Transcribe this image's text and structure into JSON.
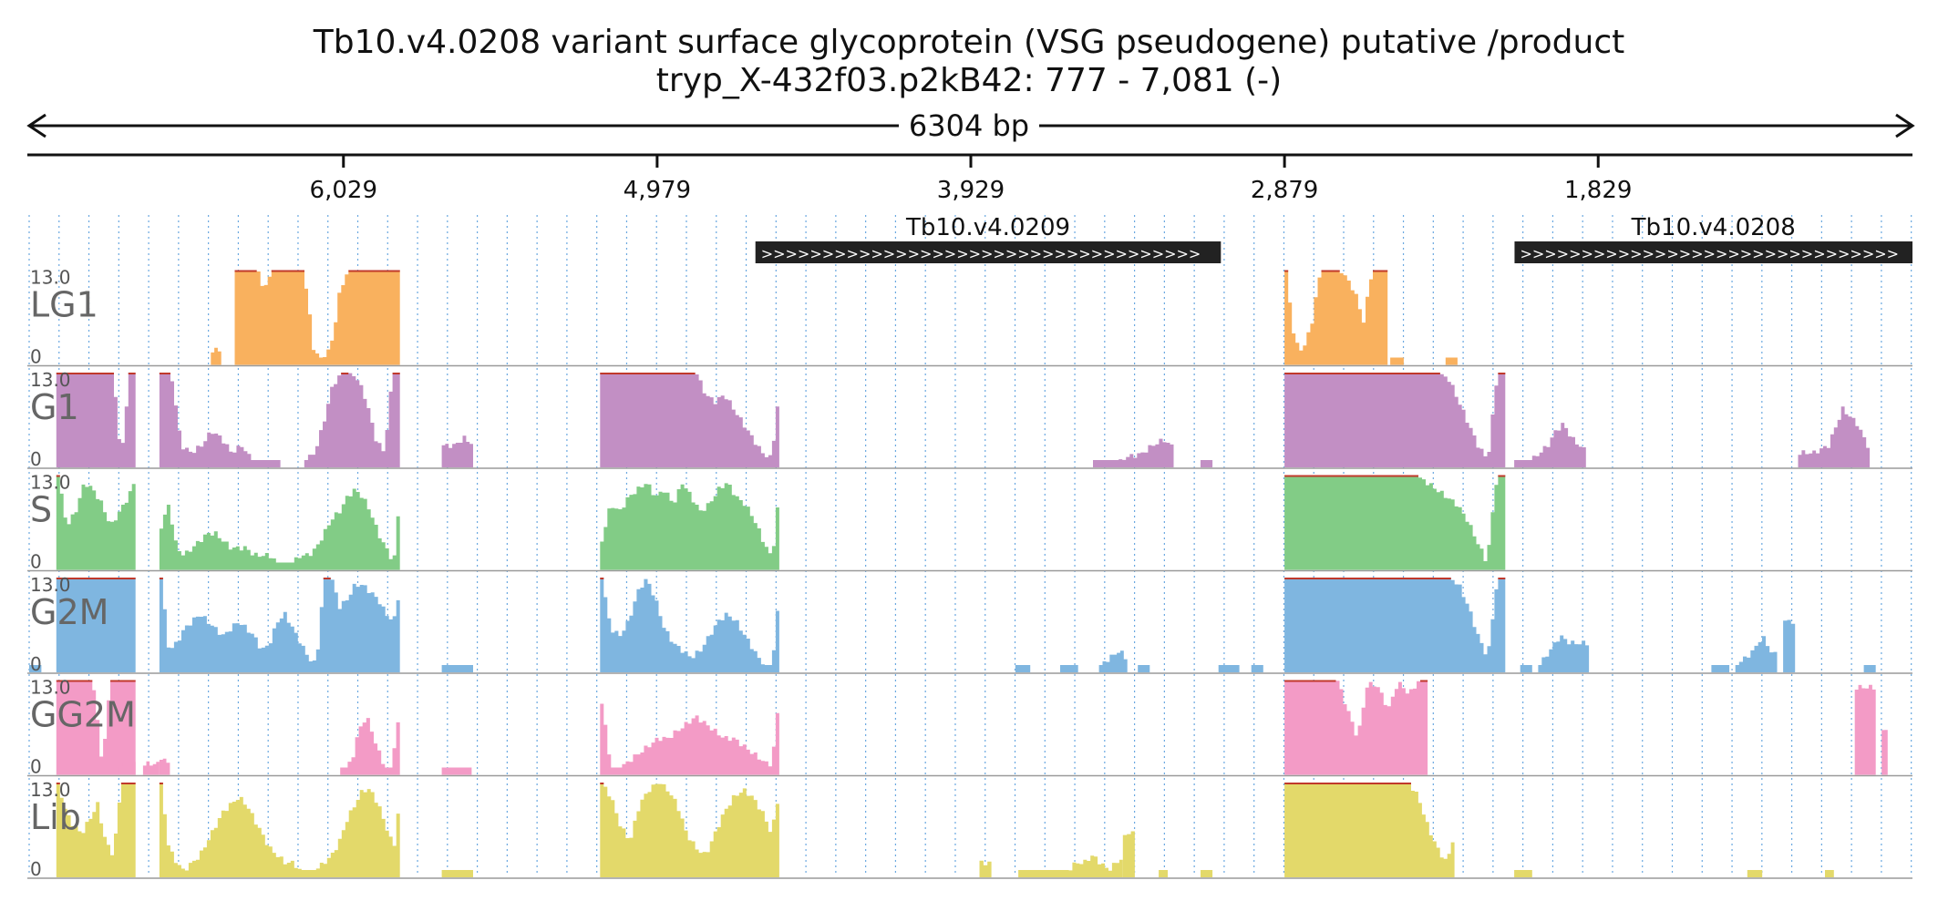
{
  "header": {
    "title": "Tb10.v4.0208  variant surface glycoprotein (VSG  pseudogene)  putative /product",
    "subtitle": "tryp_X-432f03.p2kB42: 777 - 7,081 (-)",
    "span_label": "6304 bp"
  },
  "colors": {
    "LG1": "#f9b15e",
    "G1": "#c28fc4",
    "S": "#82cc86",
    "G2M": "#7fb6e0",
    "GG2M": "#f39bc6",
    "Lib": "#e3d96a",
    "saturation": "#c0392b",
    "gene_fill": "#222222",
    "grid": "#6aa8e0"
  },
  "chart_data": {
    "type": "area",
    "title": "Tb10.v4.0208  variant surface glycoprotein (VSG  pseudogene)  putative /product",
    "region": {
      "start": 777,
      "end": 7081,
      "strand": "-"
    },
    "x_axis": {
      "ticks": [
        6029,
        4979,
        3929,
        2879,
        1829
      ],
      "tick_labels": [
        "6,029",
        "4,979",
        "3,929",
        "2,879",
        "1,829"
      ],
      "reversed": true
    },
    "y_axis": {
      "min": 0,
      "max": 13.0,
      "max_label": "13.0",
      "min_label": "0"
    },
    "genes": [
      {
        "name": "Tb10.v4.0209",
        "start": 3092,
        "end": 4650,
        "strand": "-"
      },
      {
        "name": "Tb10.v4.0208",
        "start": 777,
        "end": 2109,
        "strand": "-"
      }
    ],
    "tracks": [
      {
        "name": "LG1",
        "segments": [
          {
            "start": 6473,
            "end": 6438,
            "v": [
              2.0,
              2.0
            ]
          },
          {
            "start": 6393,
            "end": 5840,
            "v": [
              13,
              13,
              13,
              13,
              13,
              11,
              11,
              13,
              13,
              13,
              13,
              13,
              13,
              13,
              8,
              2,
              1,
              1,
              2,
              5,
              10,
              12,
              13,
              13,
              13,
              13,
              13,
              13,
              13,
              13,
              13,
              13,
              13
            ]
          },
          {
            "start": 2879,
            "end": 2534,
            "v": [
              13,
              3,
              2,
              6,
              13,
              13,
              13,
              12,
              10,
              6,
              13,
              13,
              13
            ]
          },
          {
            "start": 2525,
            "end": 2480,
            "v": [
              1.0,
              1.0
            ]
          },
          {
            "start": 2340,
            "end": 2300,
            "v": [
              1.0,
              1.0
            ]
          }
        ]
      },
      {
        "name": "G1",
        "segments": [
          {
            "start": 6990,
            "end": 6725,
            "v": [
              13,
              13,
              13,
              13,
              13,
              13,
              13,
              13,
              0.8,
              13,
              13
            ]
          },
          {
            "start": 6645,
            "end": 6240,
            "v": [
              13,
              13,
              3,
              2,
              3,
              5,
              4,
              2,
              3,
              1,
              1,
              1,
              1
            ]
          },
          {
            "start": 6160,
            "end": 5840,
            "v": [
              1,
              2,
              6,
              11,
              13,
              13,
              12,
              9,
              4,
              2,
              13,
              13
            ]
          },
          {
            "start": 5700,
            "end": 5595,
            "v": [
              3.0,
              3.0,
              4.0,
              3.0
            ]
          },
          {
            "start": 5170,
            "end": 4570,
            "v": [
              13,
              13,
              13,
              13,
              13,
              13,
              13,
              13,
              13,
              13,
              13,
              10,
              9,
              10,
              8,
              6,
              4,
              2,
              1.2,
              13
            ]
          },
          {
            "start": 3520,
            "end": 3250,
            "v": [
              1,
              1,
              1,
              1.5,
              1.8,
              3.0,
              3.8,
              2.5
            ]
          },
          {
            "start": 3160,
            "end": 3120,
            "v": [
              1.0,
              1.0
            ]
          },
          {
            "start": 2879,
            "end": 2140,
            "v": [
              13,
              13,
              13,
              13,
              13,
              13,
              13,
              13,
              13,
              13,
              13,
              13,
              13,
              13,
              13,
              13,
              13,
              12,
              9,
              6,
              3,
              1,
              13,
              13
            ]
          },
          {
            "start": 2110,
            "end": 1870,
            "v": [
              1,
              1,
              1,
              2,
              3,
              5,
              6,
              4,
              3,
              2
            ]
          },
          {
            "start": 1160,
            "end": 920,
            "v": [
              2.0,
              2.0,
              3.0,
              8.0,
              6.0,
              2.0
            ]
          }
        ]
      },
      {
        "name": "S",
        "segments": [
          {
            "start": 6990,
            "end": 6725,
            "v": [
              13,
              6,
              8,
              12,
              11,
              9,
              6,
              8,
              10,
              13
            ]
          },
          {
            "start": 6645,
            "end": 5840,
            "v": [
              6,
              9,
              3,
              2,
              3,
              4,
              5,
              5,
              4,
              3,
              3,
              3,
              2,
              2,
              2,
              1,
              1,
              1,
              2,
              2,
              3,
              5,
              7,
              8,
              10,
              11,
              10,
              8,
              5,
              3,
              1,
              13
            ]
          },
          {
            "start": 5170,
            "end": 4570,
            "v": [
              4,
              9,
              8,
              10,
              11,
              12,
              10,
              11,
              9,
              12,
              10,
              8,
              9,
              11,
              12,
              10,
              9,
              7,
              4,
              1.5,
              13
            ]
          },
          {
            "start": 2879,
            "end": 2140,
            "v": [
              13,
              13,
              13,
              13,
              13,
              13,
              13,
              13,
              13,
              13,
              13,
              13,
              13,
              13,
              12,
              11,
              10,
              9,
              7,
              4,
              1.0,
              13,
              13
            ]
          }
        ]
      },
      {
        "name": "G2M",
        "segments": [
          {
            "start": 7081,
            "end": 7040,
            "v": [
              1.0,
              1.0
            ]
          },
          {
            "start": 6990,
            "end": 6725,
            "v": [
              13,
              13,
              13,
              13,
              13,
              13,
              13,
              13,
              13,
              13
            ]
          },
          {
            "start": 6645,
            "end": 5840,
            "v": [
              13,
              3,
              4,
              6,
              7,
              8,
              7,
              6,
              5,
              6,
              7,
              6,
              5,
              3,
              4,
              7,
              8,
              6,
              4,
              2,
              1,
              13,
              13,
              9,
              10,
              12,
              12,
              11,
              10,
              8,
              7,
              13
            ]
          },
          {
            "start": 5700,
            "end": 5595,
            "v": [
              1.0,
              1.0
            ]
          },
          {
            "start": 5170,
            "end": 4570,
            "v": [
              13,
              6,
              5,
              7,
              11,
              13,
              10,
              6,
              4,
              3,
              2,
              3,
              5,
              7,
              8,
              7,
              5,
              3,
              1,
              1,
              13
            ]
          },
          {
            "start": 3780,
            "end": 3730,
            "v": [
              1.0,
              1.0
            ]
          },
          {
            "start": 3630,
            "end": 3570,
            "v": [
              1.0,
              1.0
            ]
          },
          {
            "start": 3500,
            "end": 3405,
            "v": [
              1.0,
              2.0,
              3.0,
              1.5
            ]
          },
          {
            "start": 3370,
            "end": 3330,
            "v": [
              1.0,
              1.0
            ]
          },
          {
            "start": 3100,
            "end": 3030,
            "v": [
              1.0,
              1.0
            ]
          },
          {
            "start": 2990,
            "end": 2950,
            "v": [
              1.0,
              1.0
            ]
          },
          {
            "start": 2879,
            "end": 2140,
            "v": [
              13,
              13,
              13,
              13,
              13,
              13,
              13,
              13,
              13,
              13,
              13,
              13,
              13,
              13,
              13,
              13,
              13,
              13,
              12,
              9,
              5,
              2,
              13,
              13
            ]
          },
          {
            "start": 2090,
            "end": 2050,
            "v": [
              1.0,
              1.0
            ]
          },
          {
            "start": 2030,
            "end": 1860,
            "v": [
              1.0,
              3.0,
              5.0,
              4.0,
              4.0,
              4.0
            ]
          },
          {
            "start": 1450,
            "end": 1390,
            "v": [
              1.0,
              1.0
            ]
          },
          {
            "start": 1370,
            "end": 1230,
            "v": [
              1.0,
              2.0,
              3.0,
              5.0,
              3.0,
              2.0
            ]
          },
          {
            "start": 1210,
            "end": 1170,
            "v": [
              7.0,
              7.0
            ]
          },
          {
            "start": 940,
            "end": 900,
            "v": [
              1.0,
              1.0
            ]
          }
        ]
      },
      {
        "name": "GG2M",
        "segments": [
          {
            "start": 6990,
            "end": 6725,
            "v": [
              13,
              13,
              13,
              13,
              13,
              1.5,
              13,
              13,
              13,
              13
            ]
          },
          {
            "start": 6780,
            "end": 6725,
            "v": [
              1.5,
              1.5
            ]
          },
          {
            "start": 6700,
            "end": 6645,
            "v": [
              1.5,
              1.5
            ]
          },
          {
            "start": 6645,
            "end": 6610,
            "v": [
              2.0,
              2.0
            ]
          },
          {
            "start": 6040,
            "end": 5840,
            "v": [
              1,
              1,
              2,
              5,
              7,
              8,
              6,
              4,
              2,
              1,
              1,
              7,
              7
            ]
          },
          {
            "start": 5700,
            "end": 5600,
            "v": [
              1.0,
              1.0
            ]
          },
          {
            "start": 5170,
            "end": 4570,
            "v": [
              10,
              1,
              1,
              2,
              3,
              4,
              5,
              5,
              6,
              7,
              8,
              7,
              6,
              5,
              5,
              4,
              3,
              2,
              1,
              13
            ]
          },
          {
            "start": 2879,
            "end": 2400,
            "v": [
              13,
              13,
              13,
              13,
              13,
              13,
              9,
              5,
              13,
              12,
              9,
              13,
              11,
              13,
              13
            ]
          },
          {
            "start": 970,
            "end": 900,
            "v": [
              12.0,
              12.0
            ]
          },
          {
            "start": 880,
            "end": 860,
            "v": [
              6.0,
              6.0
            ]
          }
        ]
      },
      {
        "name": "Lib",
        "segments": [
          {
            "start": 6990,
            "end": 6725,
            "v": [
              13,
              9,
              7,
              6,
              8,
              10,
              5,
              3,
              13,
              13,
              13
            ]
          },
          {
            "start": 6645,
            "end": 5840,
            "v": [
              13,
              4,
              2,
              1,
              2,
              3,
              5,
              7,
              9,
              10,
              11,
              10,
              8,
              6,
              4,
              3,
              2,
              2,
              1,
              1,
              1,
              2,
              3,
              5,
              8,
              10,
              12,
              12,
              10,
              7,
              4,
              13
            ]
          },
          {
            "start": 5700,
            "end": 5595,
            "v": [
              1.0,
              1.0
            ]
          },
          {
            "start": 5170,
            "end": 4570,
            "v": [
              13,
              11,
              7,
              5,
              10,
              12,
              13,
              12,
              10,
              6,
              4,
              3,
              6,
              9,
              11,
              12,
              11,
              9,
              6,
              13
            ]
          },
          {
            "start": 3900,
            "end": 3860,
            "v": [
              2.0,
              2.0
            ]
          },
          {
            "start": 3770,
            "end": 3420,
            "v": [
              1,
              1,
              1,
              1,
              1,
              1,
              1,
              2,
              2,
              3,
              2,
              1,
              2,
              3
            ]
          },
          {
            "start": 3420,
            "end": 3380,
            "v": [
              6.0,
              6.0
            ]
          },
          {
            "start": 3300,
            "end": 3270,
            "v": [
              1.0,
              1.0
            ]
          },
          {
            "start": 3160,
            "end": 3120,
            "v": [
              1.0,
              1.0
            ]
          },
          {
            "start": 2879,
            "end": 2310,
            "v": [
              13,
              13,
              13,
              13,
              13,
              13,
              13,
              13,
              13,
              13,
              13,
              13,
              13,
              13,
              11,
              7,
              4,
              2,
              7
            ]
          },
          {
            "start": 2110,
            "end": 2050,
            "v": [
              1.0,
              1.0
            ]
          },
          {
            "start": 1330,
            "end": 1280,
            "v": [
              1.0,
              1.0
            ]
          },
          {
            "start": 1070,
            "end": 1040,
            "v": [
              1.0,
              1.0
            ]
          }
        ]
      }
    ]
  }
}
